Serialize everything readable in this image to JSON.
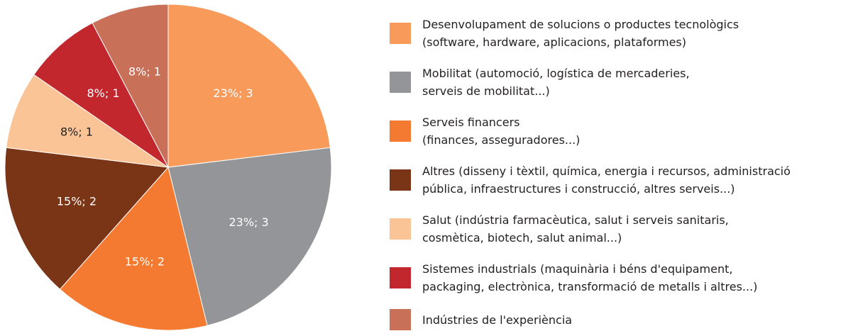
{
  "chart_data": {
    "type": "pie",
    "categories": [
      "Desenvolupament de solucions o productes tecnològics\n(software, hardware, aplicacions, plataformes)",
      "Mobilitat (automoció, logística de mercaderies,\nserveis de mobilitat...)",
      "Serveis financers\n(finances, asseguradores...)",
      "Altres (disseny i tèxtil, química, energia i recursos, administració\npública, infraestructures i construcció, altres serveis...)",
      "Salut (indústria farmacèutica, salut i serveis sanitaris,\ncosmètica, biotech, salut animal...)",
      "Sistemes industrials (maquinària i béns d'equipament,\npackaging, electrònica, transformació de metalls i altres...)",
      "Indústries de l'experiència"
    ],
    "values": [
      3,
      3,
      2,
      2,
      1,
      1,
      1
    ],
    "value_labels": [
      "23%; 3",
      "23%; 3",
      "15%; 2",
      "15%; 2",
      "8%; 1",
      "8%; 1",
      "8%; 1"
    ],
    "colors": [
      "#f79a5a",
      "#939598",
      "#f37a30",
      "#7a3517",
      "#fbc496",
      "#c1272d",
      "#c87158"
    ],
    "legend": "right"
  }
}
